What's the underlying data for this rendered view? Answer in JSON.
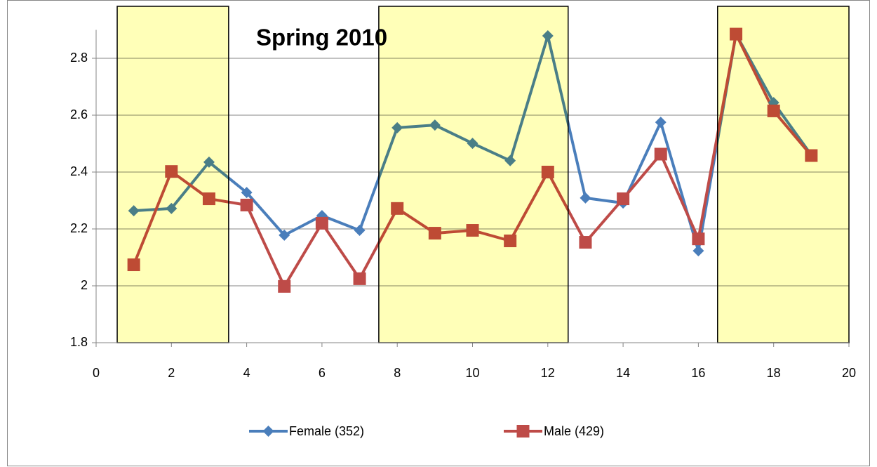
{
  "chart_data": {
    "type": "line",
    "title": "Spring 2010",
    "x": [
      1,
      2,
      3,
      4,
      5,
      6,
      7,
      8,
      9,
      10,
      11,
      12,
      13,
      14,
      15,
      16,
      17,
      18,
      19
    ],
    "series": [
      {
        "name": "Female (352)",
        "color": "#4a7ebb",
        "marker": "diamond",
        "values": [
          2.264,
          2.272,
          2.435,
          2.328,
          2.178,
          2.247,
          2.195,
          2.556,
          2.565,
          2.501,
          2.44,
          2.879,
          2.309,
          2.291,
          2.575,
          2.123,
          2.885,
          2.644,
          2.46
        ]
      },
      {
        "name": "Male (429)",
        "color": "#be4b48",
        "marker": "square",
        "values": [
          2.074,
          2.402,
          2.306,
          2.284,
          1.998,
          2.22,
          2.025,
          2.272,
          2.185,
          2.195,
          2.158,
          2.4,
          2.153,
          2.306,
          2.463,
          2.165,
          2.885,
          2.615,
          2.458
        ]
      }
    ],
    "highlight_ranges": [
      [
        0.56,
        3.52
      ],
      [
        7.51,
        12.54
      ],
      [
        16.51,
        20
      ]
    ],
    "highlight_color": "#ffffb8",
    "xlim": [
      0,
      20
    ],
    "xticks": [
      0,
      2,
      4,
      6,
      8,
      10,
      12,
      14,
      16,
      18,
      20
    ],
    "ylim": [
      1.8,
      2.9
    ],
    "yticks": [
      1.8,
      2,
      2.2,
      2.4,
      2.6,
      2.8
    ],
    "grid": true,
    "legend": "bottom"
  }
}
